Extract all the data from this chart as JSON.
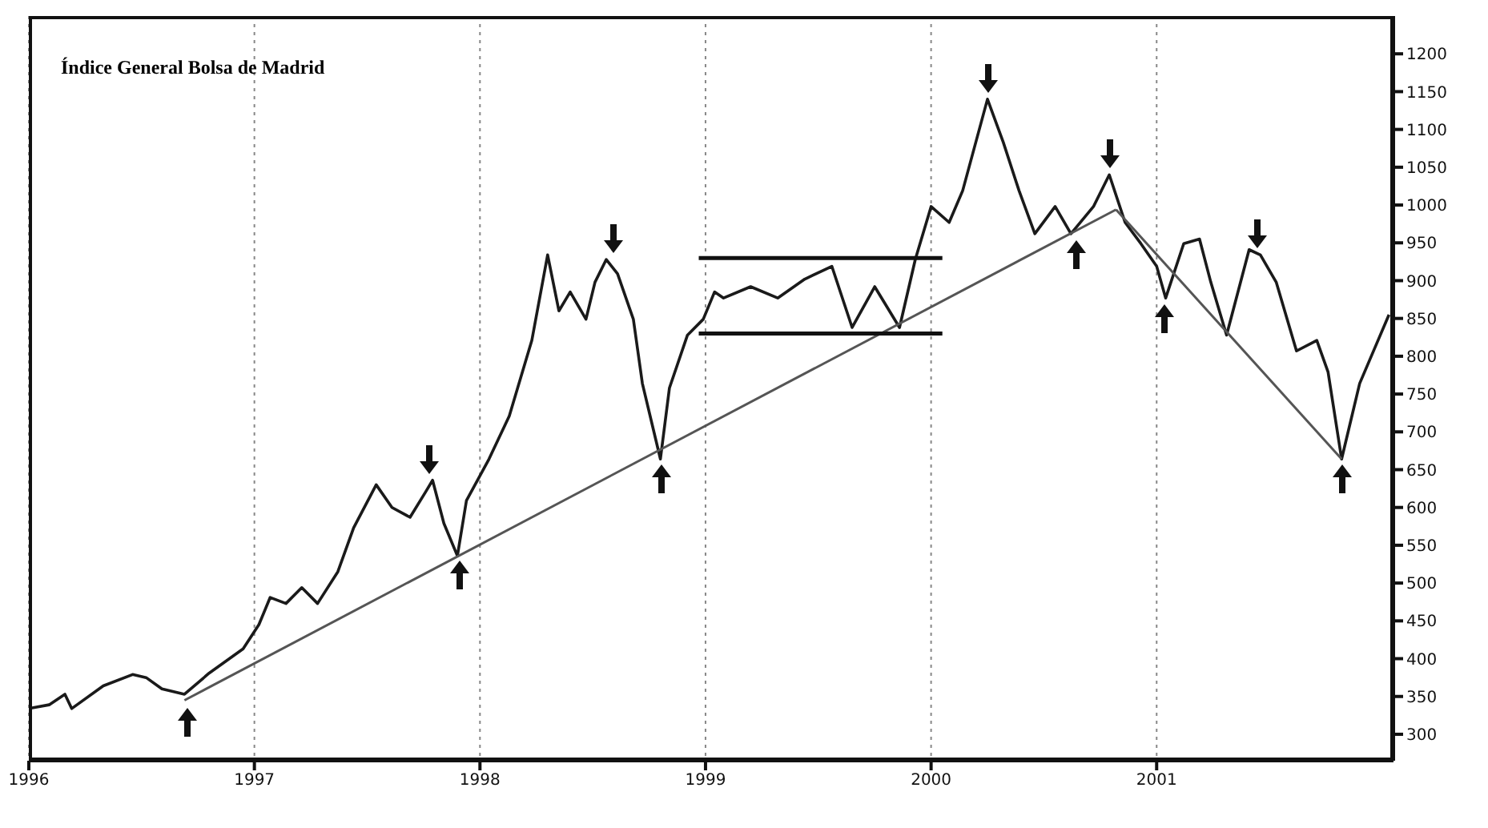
{
  "chart_data": {
    "type": "line",
    "title": "Índice General Bolsa de Madrid",
    "xlim": [
      1996,
      2002.05
    ],
    "xticks": [
      1996,
      1997,
      1998,
      1999,
      2000,
      2001
    ],
    "ylim": [
      265,
      1250
    ],
    "yticks": [
      300,
      350,
      400,
      450,
      500,
      550,
      600,
      650,
      700,
      750,
      800,
      850,
      900,
      950,
      1000,
      1050,
      1100,
      1150,
      1200
    ],
    "grid": "x",
    "marker": "none",
    "line_style": "solid",
    "series": [
      {
        "color": "#1a1a1a",
        "x": [
          1996.0,
          1996.09,
          1996.16,
          1996.19,
          1996.33,
          1996.46,
          1996.52,
          1996.59,
          1996.69,
          1996.8,
          1996.95,
          1997.02,
          1997.07,
          1997.14,
          1997.21,
          1997.28,
          1997.37,
          1997.44,
          1997.54,
          1997.61,
          1997.69,
          1997.76,
          1997.79,
          1997.84,
          1997.9,
          1997.94,
          1998.04,
          1998.13,
          1998.23,
          1998.3,
          1998.35,
          1998.4,
          1998.47,
          1998.51,
          1998.56,
          1998.61,
          1998.68,
          1998.72,
          1998.8,
          1998.84,
          1998.92,
          1998.99,
          1999.04,
          1999.08,
          1999.2,
          1999.32,
          1999.44,
          1999.56,
          1999.65,
          1999.75,
          1999.86,
          1999.93,
          2000.0,
          2000.08,
          2000.14,
          2000.25,
          2000.32,
          2000.39,
          2000.46,
          2000.55,
          2000.62,
          2000.72,
          2000.79,
          2000.86,
          2000.93,
          2001.0,
          2001.04,
          2001.12,
          2001.19,
          2001.24,
          2001.31,
          2001.41,
          2001.46,
          2001.53,
          2001.62,
          2001.71,
          2001.76,
          2001.82,
          2001.9,
          2001.97,
          2002.03
        ],
        "values": [
          334,
          339,
          353,
          334,
          364,
          379,
          375,
          360,
          353,
          381,
          413,
          445,
          481,
          473,
          494,
          473,
          515,
          573,
          630,
          600,
          587,
          621,
          636,
          579,
          536,
          609,
          664,
          721,
          821,
          934,
          860,
          885,
          849,
          898,
          928,
          909,
          849,
          764,
          664,
          758,
          828,
          849,
          885,
          877,
          892,
          877,
          902,
          919,
          838,
          892,
          838,
          928,
          998,
          977,
          1019,
          1140,
          1083,
          1019,
          962,
          998,
          962,
          998,
          1040,
          977,
          949,
          919,
          877,
          949,
          955,
          898,
          828,
          941,
          934,
          898,
          807,
          821,
          779,
          664,
          764,
          813,
          855
        ]
      },
      {
        "color": "#555555",
        "x": [
          1996.69,
          2000.82
        ],
        "values": [
          345,
          994
        ]
      },
      {
        "color": "#555555",
        "x": [
          2000.82,
          2001.82
        ],
        "values": [
          994,
          664
        ]
      },
      {
        "color": "#111111",
        "x": [
          1998.97,
          2000.05
        ],
        "values": [
          930,
          930
        ]
      },
      {
        "color": "#111111",
        "x": [
          1998.97,
          2000.05
        ],
        "values": [
          830,
          830
        ]
      }
    ]
  }
}
